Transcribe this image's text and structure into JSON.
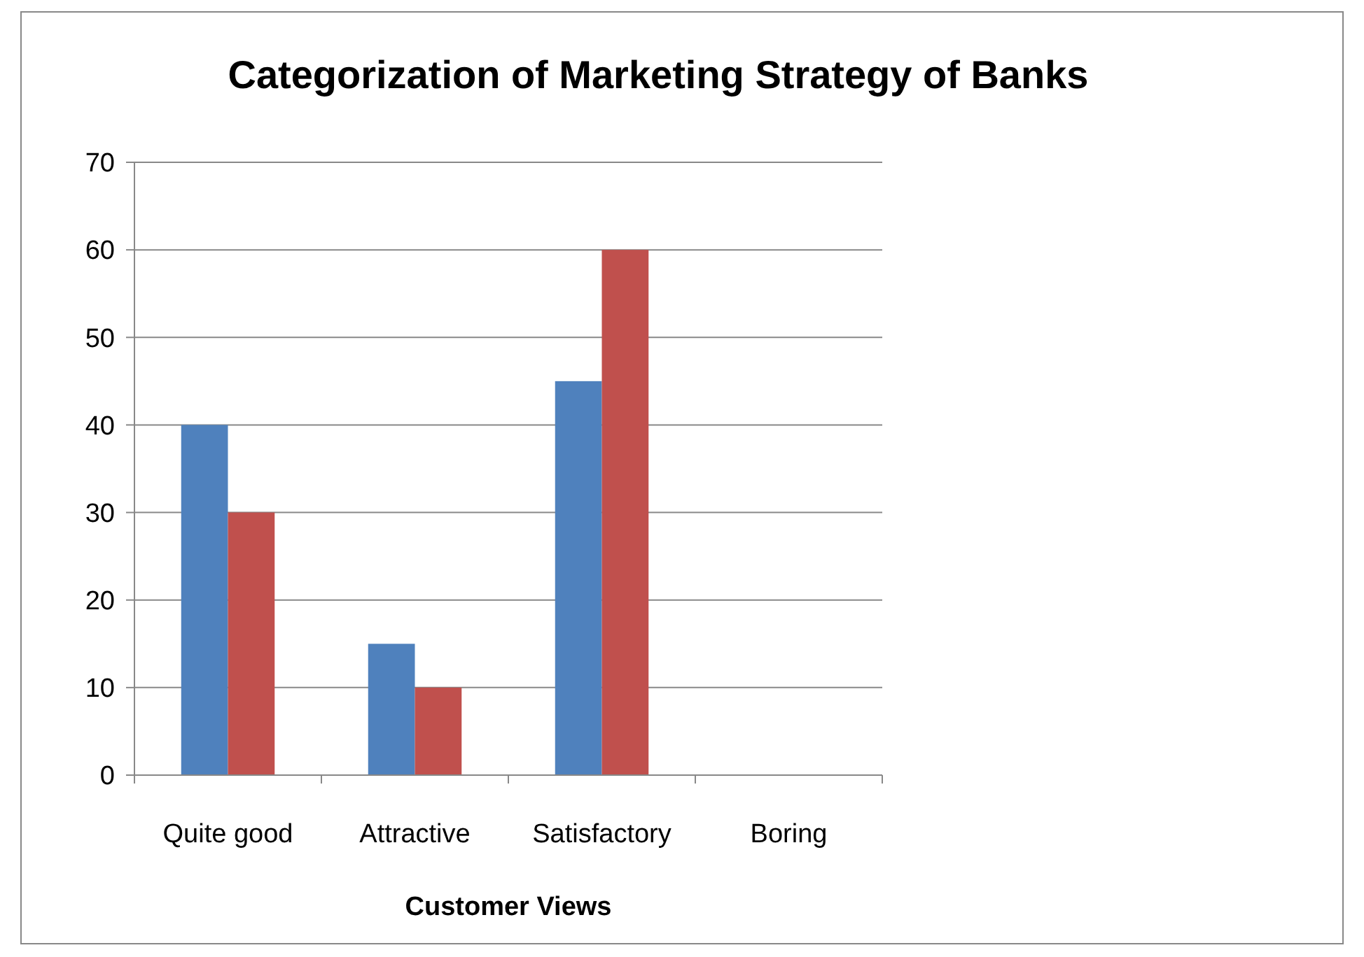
{
  "chart_data": {
    "type": "bar",
    "title": "Categorization of Marketing Strategy of Banks",
    "xlabel": "Customer Views",
    "categories": [
      "Quite good",
      "Attractive",
      "Satisfactory",
      "Boring"
    ],
    "series": [
      {
        "color": "#4f81bd",
        "values": [
          40,
          15,
          45,
          0
        ]
      },
      {
        "color": "#c0504d",
        "values": [
          30,
          10,
          60,
          0
        ]
      }
    ],
    "ylim": [
      0,
      70
    ],
    "yticks": [
      0,
      10,
      20,
      30,
      40,
      50,
      60,
      70
    ],
    "grid": "y"
  }
}
